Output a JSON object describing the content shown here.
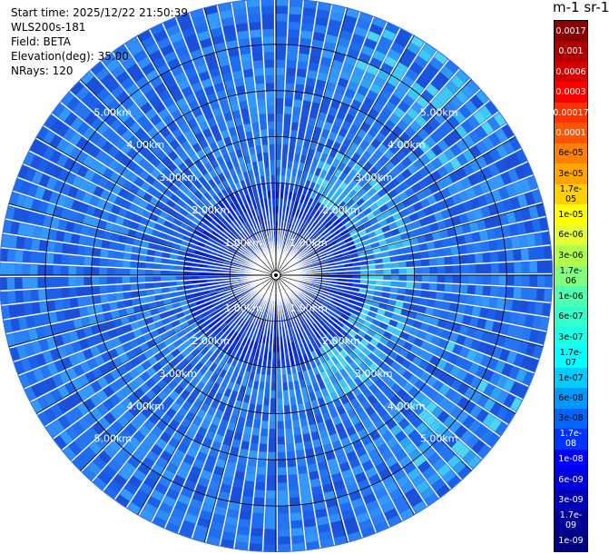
{
  "header": {
    "start_time": "Start time: 2025/12/22 21:50:39",
    "instrument": "WLS200s-181",
    "field": "Field: BETA",
    "elevation": "Elevation(deg): 35.00",
    "nrays": "NRays: 120"
  },
  "colorbar": {
    "title": "m-1 sr-1",
    "labels": [
      "0.0017",
      "0.001",
      "0.0006",
      "0.0003",
      "0.00017",
      "0.0001",
      "6e-05",
      "3e-05",
      "1.7e-05",
      "1e-05",
      "6e-06",
      "3e-06",
      "1.7e-06",
      "1e-06",
      "6e-07",
      "3e-07",
      "1.7e-07",
      "1e-07",
      "6e-08",
      "3e-08",
      "1.7e-08",
      "1e-08",
      "6e-09",
      "3e-09",
      "1.7e-09",
      "1e-09"
    ],
    "colors": [
      "#8b0000",
      "#b00000",
      "#d40000",
      "#ff0000",
      "#ff3300",
      "#ff5500",
      "#ff7f00",
      "#ffa500",
      "#ffd000",
      "#ffff00",
      "#e6ff33",
      "#b3ff4d",
      "#80ff80",
      "#4dffb3",
      "#33ffcc",
      "#1fffe6",
      "#00ffff",
      "#00ccff",
      "#0099ff",
      "#0066ff",
      "#0033ff",
      "#0000ff",
      "#0000dd",
      "#0000bb",
      "#000099",
      "#000080"
    ],
    "label_colors": [
      "#ffffff",
      "#ffffff",
      "#ffffff",
      "#ffffff",
      "#ffffff",
      "#ffffff",
      "#000000",
      "#000000",
      "#000000",
      "#000000",
      "#000000",
      "#000000",
      "#000000",
      "#000000",
      "#000000",
      "#000000",
      "#000000",
      "#000000",
      "#000000",
      "#000000",
      "#ffffff",
      "#ffffff",
      "#ffffff",
      "#ffffff",
      "#ffffff",
      "#ffffff"
    ]
  },
  "chart_data": {
    "type": "heatmap",
    "projection": "polar PPI",
    "field": "BETA",
    "elevation_deg": 35.0,
    "n_rays": 120,
    "range_ring_labels": [
      "1.00km",
      "2.00km",
      "3.00km",
      "4.00km",
      "5.00km"
    ],
    "range_rings_km": [
      1,
      2,
      3,
      4,
      5
    ],
    "max_range_km": 6.0,
    "background_level": "3e-08",
    "enhanced_band": {
      "azimuth_deg_from": 20,
      "azimuth_deg_to": 160,
      "range_km_from": 1.8,
      "range_km_to": 3.0,
      "level": "1.7e-07"
    },
    "near_field_level": "1e-08"
  }
}
